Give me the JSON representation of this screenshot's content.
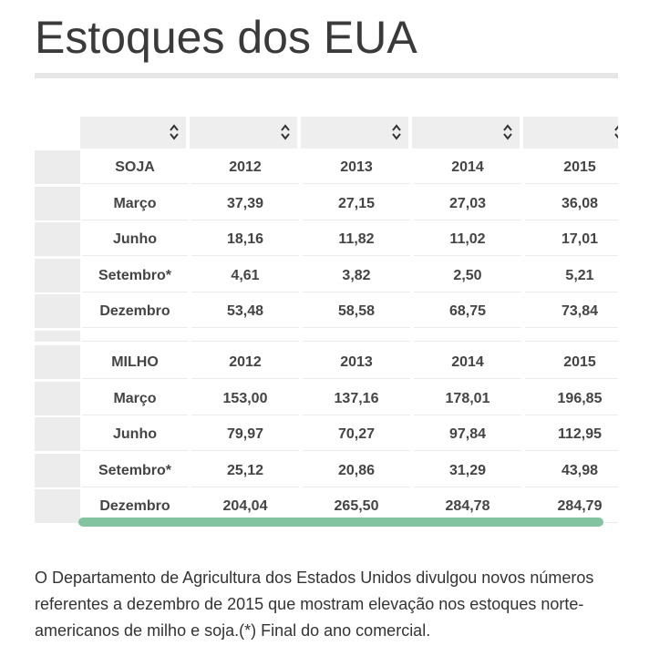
{
  "page": {
    "title": "Estoques dos EUA",
    "description": "O Departamento de Agricultura dos Estados Unidos divulgou novos números referentes a dezembro de 2015 que mostram elevação nos estoques norte-americanos de milho e soja.(*) Final do ano comercial."
  },
  "table": {
    "soja": {
      "header": [
        "SOJA",
        "2012",
        "2013",
        "2014",
        "2015"
      ],
      "rows": [
        [
          "Março",
          "37,39",
          "27,15",
          "27,03",
          "36,08"
        ],
        [
          "Junho",
          "18,16",
          "11,82",
          "11,02",
          "17,01"
        ],
        [
          "Setembro*",
          "4,61",
          "3,82",
          "2,50",
          "5,21"
        ],
        [
          "Dezembro",
          "53,48",
          "58,58",
          "68,75",
          "73,84"
        ]
      ]
    },
    "milho": {
      "header": [
        "MILHO",
        "2012",
        "2013",
        "2014",
        "2015"
      ],
      "rows": [
        [
          "Março",
          "153,00",
          "137,16",
          "178,01",
          "196,85"
        ],
        [
          "Junho",
          "79,97",
          "70,27",
          "97,84",
          "112,95"
        ],
        [
          "Setembro*",
          "25,12",
          "20,86",
          "31,29",
          "43,98"
        ],
        [
          "Dezembro",
          "204,04",
          "265,50",
          "284,78",
          "284,79"
        ]
      ]
    }
  },
  "colors": {
    "scrollbar": "#84c3a0",
    "header_bg": "#eeeeee",
    "row_head_bg": "#ececec"
  },
  "icons": {
    "sort": "sort-arrows-icon"
  }
}
